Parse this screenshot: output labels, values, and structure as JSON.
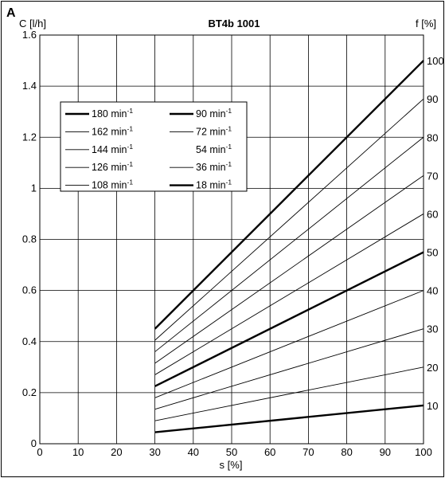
{
  "figure_label": "A",
  "chart_data": {
    "type": "line",
    "title": "BT4b 1001",
    "xlabel": "s [%]",
    "ylabel": "C [l/h]",
    "y2label": "f [%]",
    "xlim": [
      0,
      100
    ],
    "ylim": [
      0,
      1.6
    ],
    "xticks": [
      "0",
      "10",
      "20",
      "30",
      "40",
      "50",
      "60",
      "70",
      "80",
      "90",
      "100"
    ],
    "yticks": [
      "0",
      "0.2",
      "0.4",
      "0.6",
      "0.8",
      "1",
      "1.2",
      "1.4",
      "1.6"
    ],
    "y2ticks": [
      "10",
      "20",
      "30",
      "40",
      "50",
      "60",
      "70",
      "80",
      "90",
      "100"
    ],
    "grid": true,
    "legend_position": "top-left",
    "legend_unit": "min-1",
    "x": [
      30,
      100
    ],
    "series": [
      {
        "name": "180",
        "values": [
          0.45,
          1.5
        ],
        "bold": true
      },
      {
        "name": "162",
        "values": [
          0.405,
          1.35
        ],
        "bold": false
      },
      {
        "name": "144",
        "values": [
          0.36,
          1.2
        ],
        "bold": false
      },
      {
        "name": "126",
        "values": [
          0.315,
          1.05
        ],
        "bold": false
      },
      {
        "name": "108",
        "values": [
          0.27,
          0.9
        ],
        "bold": false
      },
      {
        "name": "90",
        "values": [
          0.225,
          0.75
        ],
        "bold": true
      },
      {
        "name": "72",
        "values": [
          0.18,
          0.6
        ],
        "bold": false
      },
      {
        "name": "54",
        "values": [
          0.135,
          0.45
        ],
        "bold": false
      },
      {
        "name": "36",
        "values": [
          0.09,
          0.3
        ],
        "bold": false
      },
      {
        "name": "18",
        "values": [
          0.045,
          0.15
        ],
        "bold": true
      }
    ],
    "legend_items": [
      {
        "name": "180",
        "bold": true,
        "line": true
      },
      {
        "name": "90",
        "bold": true,
        "line": true
      },
      {
        "name": "162",
        "bold": false,
        "line": true
      },
      {
        "name": "72",
        "bold": false,
        "line": true
      },
      {
        "name": "144",
        "bold": false,
        "line": true
      },
      {
        "name": "54",
        "bold": false,
        "line": false
      },
      {
        "name": "126",
        "bold": false,
        "line": true
      },
      {
        "name": "36",
        "bold": false,
        "line": true
      },
      {
        "name": "108",
        "bold": false,
        "line": true
      },
      {
        "name": "18",
        "bold": true,
        "line": true
      }
    ]
  }
}
